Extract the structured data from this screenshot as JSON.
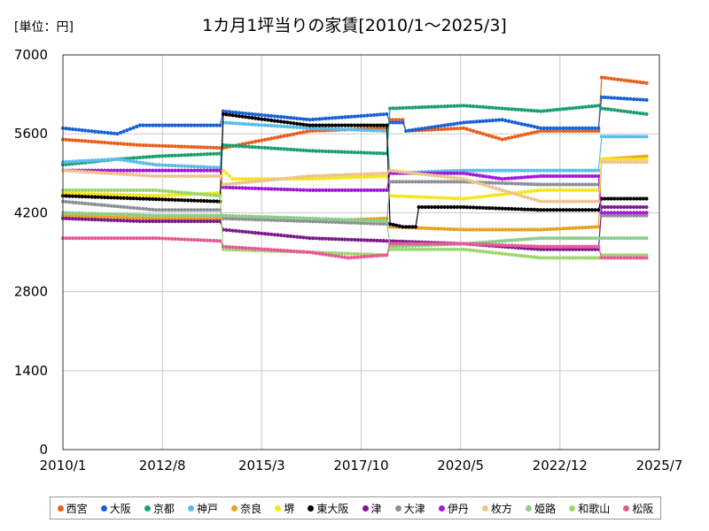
{
  "chart_data": {
    "type": "line",
    "title": "1カ月1坪当りの家賃[2010/1～2025/3]",
    "unit_label": "[単位：円]",
    "xlabel": "",
    "ylabel": "",
    "x_ticks": [
      "2010/1",
      "2012/8",
      "2015/3",
      "2017/10",
      "2020/5",
      "2022/12",
      "2025/7"
    ],
    "x_range": [
      "2010-01",
      "2025-07"
    ],
    "y_ticks": [
      "0",
      "1400",
      "2800",
      "4200",
      "5600",
      "7000"
    ],
    "ylim": [
      0,
      7000
    ],
    "grid": true,
    "legend_position": "bottom",
    "series": [
      {
        "name": "西宮",
        "color": "#e8601c",
        "points": [
          [
            "2010-01",
            5500
          ],
          [
            "2012-01",
            5400
          ],
          [
            "2014-02",
            5350
          ],
          [
            "2014-03",
            5350
          ],
          [
            "2016-06",
            5650
          ],
          [
            "2018-06",
            5700
          ],
          [
            "2018-07",
            5850
          ],
          [
            "2018-11",
            5850
          ],
          [
            "2018-12",
            5650
          ],
          [
            "2020-06",
            5700
          ],
          [
            "2021-06",
            5500
          ],
          [
            "2022-06",
            5650
          ],
          [
            "2023-12",
            5650
          ],
          [
            "2024-01",
            6600
          ],
          [
            "2025-03",
            6500
          ]
        ]
      },
      {
        "name": "大阪",
        "color": "#1861d6",
        "points": [
          [
            "2010-01",
            5700
          ],
          [
            "2011-06",
            5600
          ],
          [
            "2012-01",
            5750
          ],
          [
            "2014-02",
            5750
          ],
          [
            "2014-03",
            6000
          ],
          [
            "2016-06",
            5850
          ],
          [
            "2018-06",
            5950
          ],
          [
            "2018-07",
            5800
          ],
          [
            "2018-11",
            5800
          ],
          [
            "2018-12",
            5650
          ],
          [
            "2020-06",
            5800
          ],
          [
            "2021-06",
            5850
          ],
          [
            "2022-06",
            5700
          ],
          [
            "2023-12",
            5700
          ],
          [
            "2024-01",
            6250
          ],
          [
            "2025-03",
            6200
          ]
        ]
      },
      {
        "name": "京都",
        "color": "#1aa06e",
        "points": [
          [
            "2010-01",
            5050
          ],
          [
            "2011-06",
            5150
          ],
          [
            "2012-06",
            5200
          ],
          [
            "2014-02",
            5250
          ],
          [
            "2014-03",
            5400
          ],
          [
            "2016-06",
            5300
          ],
          [
            "2018-06",
            5250
          ],
          [
            "2018-07",
            6050
          ],
          [
            "2020-06",
            6100
          ],
          [
            "2022-06",
            6000
          ],
          [
            "2023-12",
            6100
          ],
          [
            "2024-01",
            6050
          ],
          [
            "2025-03",
            5950
          ]
        ]
      },
      {
        "name": "神戸",
        "color": "#5bbce8",
        "points": [
          [
            "2010-01",
            5100
          ],
          [
            "2011-06",
            5150
          ],
          [
            "2012-06",
            5050
          ],
          [
            "2014-02",
            5000
          ],
          [
            "2014-03",
            5800
          ],
          [
            "2016-06",
            5700
          ],
          [
            "2018-06",
            5650
          ],
          [
            "2018-07",
            4900
          ],
          [
            "2020-06",
            4950
          ],
          [
            "2022-06",
            4950
          ],
          [
            "2023-12",
            4950
          ],
          [
            "2024-01",
            5550
          ],
          [
            "2025-03",
            5550
          ]
        ]
      },
      {
        "name": "奈良",
        "color": "#e8a21a",
        "points": [
          [
            "2010-01",
            4150
          ],
          [
            "2012-06",
            4100
          ],
          [
            "2014-02",
            4100
          ],
          [
            "2014-03",
            4100
          ],
          [
            "2016-06",
            4050
          ],
          [
            "2018-06",
            4100
          ],
          [
            "2018-07",
            3950
          ],
          [
            "2020-06",
            3900
          ],
          [
            "2022-06",
            3900
          ],
          [
            "2023-12",
            3950
          ],
          [
            "2024-01",
            5150
          ],
          [
            "2025-03",
            5200
          ]
        ]
      },
      {
        "name": "堺",
        "color": "#f5e61a",
        "points": [
          [
            "2010-01",
            4550
          ],
          [
            "2012-06",
            4500
          ],
          [
            "2014-02",
            4550
          ],
          [
            "2014-03",
            4950
          ],
          [
            "2014-06",
            4800
          ],
          [
            "2016-06",
            4800
          ],
          [
            "2018-06",
            4850
          ],
          [
            "2018-07",
            4500
          ],
          [
            "2020-06",
            4450
          ],
          [
            "2022-06",
            4600
          ],
          [
            "2023-12",
            4600
          ],
          [
            "2024-01",
            5150
          ],
          [
            "2025-03",
            5150
          ]
        ]
      },
      {
        "name": "東大阪",
        "color": "#000000",
        "points": [
          [
            "2010-01",
            4500
          ],
          [
            "2012-01",
            4450
          ],
          [
            "2014-02",
            4400
          ],
          [
            "2014-03",
            5950
          ],
          [
            "2016-06",
            5750
          ],
          [
            "2018-06",
            5750
          ],
          [
            "2018-07",
            4000
          ],
          [
            "2018-11",
            3950
          ],
          [
            "2019-03",
            3950
          ],
          [
            "2019-04",
            4300
          ],
          [
            "2020-06",
            4300
          ],
          [
            "2022-06",
            4250
          ],
          [
            "2023-12",
            4250
          ],
          [
            "2024-01",
            4450
          ],
          [
            "2025-03",
            4450
          ]
        ]
      },
      {
        "name": "津",
        "color": "#7b1a8c",
        "points": [
          [
            "2010-01",
            4100
          ],
          [
            "2012-01",
            4050
          ],
          [
            "2014-02",
            4050
          ],
          [
            "2014-03",
            3900
          ],
          [
            "2016-06",
            3750
          ],
          [
            "2018-06",
            3700
          ],
          [
            "2020-06",
            3650
          ],
          [
            "2022-06",
            3550
          ],
          [
            "2023-12",
            3550
          ],
          [
            "2024-01",
            4300
          ],
          [
            "2025-03",
            4300
          ]
        ]
      },
      {
        "name": "大津",
        "color": "#8c9098",
        "points": [
          [
            "2010-01",
            4400
          ],
          [
            "2012-06",
            4250
          ],
          [
            "2014-02",
            4250
          ],
          [
            "2014-03",
            4100
          ],
          [
            "2016-06",
            4050
          ],
          [
            "2018-06",
            4000
          ],
          [
            "2018-07",
            4750
          ],
          [
            "2020-06",
            4750
          ],
          [
            "2022-06",
            4700
          ],
          [
            "2023-12",
            4700
          ],
          [
            "2024-01",
            4150
          ],
          [
            "2025-03",
            4150
          ]
        ]
      },
      {
        "name": "伊丹",
        "color": "#a01ad6",
        "points": [
          [
            "2010-01",
            4950
          ],
          [
            "2012-06",
            4950
          ],
          [
            "2014-02",
            4950
          ],
          [
            "2014-03",
            4650
          ],
          [
            "2016-06",
            4600
          ],
          [
            "2018-06",
            4600
          ],
          [
            "2018-07",
            4900
          ],
          [
            "2020-06",
            4900
          ],
          [
            "2021-06",
            4800
          ],
          [
            "2022-06",
            4850
          ],
          [
            "2023-12",
            4850
          ],
          [
            "2024-01",
            4200
          ],
          [
            "2025-03",
            4200
          ]
        ]
      },
      {
        "name": "枚方",
        "color": "#ecc58c",
        "points": [
          [
            "2010-01",
            4950
          ],
          [
            "2012-06",
            4850
          ],
          [
            "2014-02",
            4850
          ],
          [
            "2014-03",
            4700
          ],
          [
            "2016-06",
            4850
          ],
          [
            "2018-06",
            4900
          ],
          [
            "2018-07",
            4950
          ],
          [
            "2020-06",
            4800
          ],
          [
            "2022-06",
            4400
          ],
          [
            "2023-12",
            4400
          ],
          [
            "2024-01",
            5100
          ],
          [
            "2025-03",
            5100
          ]
        ]
      },
      {
        "name": "姫路",
        "color": "#8ccc8c",
        "points": [
          [
            "2010-01",
            4200
          ],
          [
            "2012-06",
            4150
          ],
          [
            "2014-02",
            4150
          ],
          [
            "2014-03",
            4150
          ],
          [
            "2016-06",
            4100
          ],
          [
            "2018-06",
            4050
          ],
          [
            "2018-07",
            3600
          ],
          [
            "2020-06",
            3650
          ],
          [
            "2022-06",
            3750
          ],
          [
            "2023-12",
            3750
          ],
          [
            "2024-01",
            3750
          ],
          [
            "2025-03",
            3750
          ]
        ]
      },
      {
        "name": "和歌山",
        "color": "#9ed66e",
        "points": [
          [
            "2010-01",
            4600
          ],
          [
            "2012-06",
            4600
          ],
          [
            "2014-02",
            4500
          ],
          [
            "2014-03",
            3550
          ],
          [
            "2016-06",
            3500
          ],
          [
            "2018-06",
            3450
          ],
          [
            "2018-07",
            3550
          ],
          [
            "2020-06",
            3550
          ],
          [
            "2022-06",
            3400
          ],
          [
            "2023-12",
            3400
          ],
          [
            "2024-01",
            3450
          ],
          [
            "2025-03",
            3450
          ]
        ]
      },
      {
        "name": "松阪",
        "color": "#e85a96",
        "points": [
          [
            "2010-01",
            3750
          ],
          [
            "2012-06",
            3750
          ],
          [
            "2014-02",
            3700
          ],
          [
            "2014-03",
            3600
          ],
          [
            "2016-06",
            3500
          ],
          [
            "2017-06",
            3400
          ],
          [
            "2018-06",
            3450
          ],
          [
            "2018-07",
            3650
          ],
          [
            "2020-06",
            3650
          ],
          [
            "2022-06",
            3600
          ],
          [
            "2023-12",
            3600
          ],
          [
            "2024-01",
            3400
          ],
          [
            "2025-03",
            3400
          ]
        ]
      }
    ]
  }
}
